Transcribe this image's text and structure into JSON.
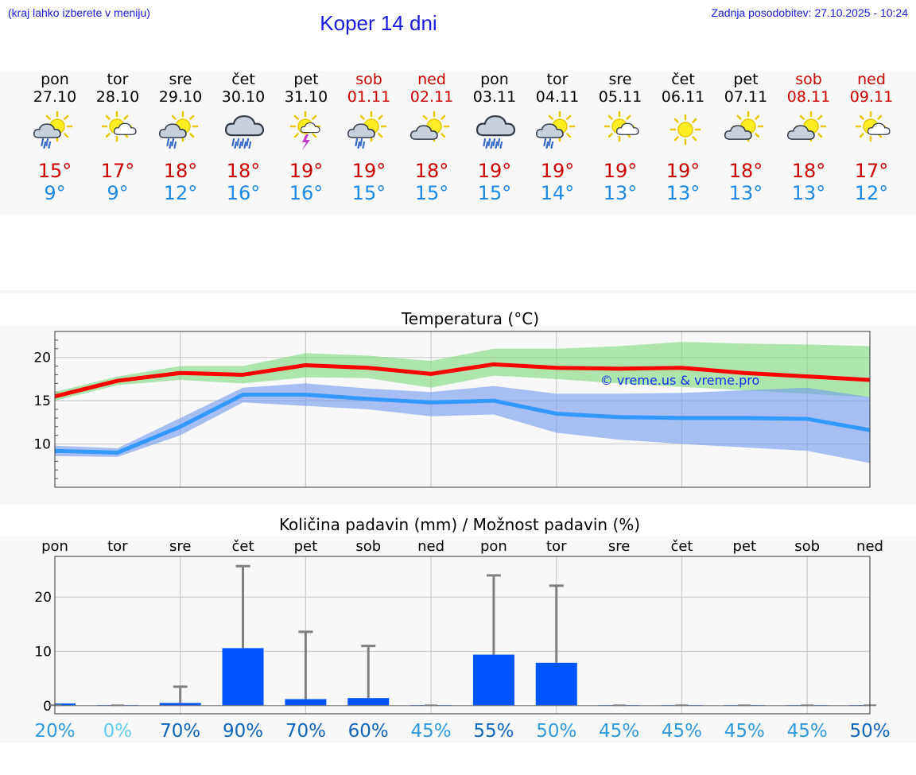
{
  "header": {
    "hint": "(kraj lahko izberete v meniju)",
    "title": "Koper 14 dni",
    "updated": "Zadnja posodobitev: 27.10.2025 - 10:24"
  },
  "days": [
    {
      "name": "pon",
      "date": "27.10",
      "weekend": false,
      "icon": "sun-cloud-rain-icon",
      "max": "15°",
      "min": "9°"
    },
    {
      "name": "tor",
      "date": "28.10",
      "weekend": false,
      "icon": "sun-small-cloud-icon",
      "max": "17°",
      "min": "9°"
    },
    {
      "name": "sre",
      "date": "29.10",
      "weekend": false,
      "icon": "sun-cloud-rain-icon",
      "max": "18°",
      "min": "12°"
    },
    {
      "name": "čet",
      "date": "30.10",
      "weekend": false,
      "icon": "cloud-heavy-rain-icon",
      "max": "18°",
      "min": "16°"
    },
    {
      "name": "pet",
      "date": "31.10",
      "weekend": false,
      "icon": "sun-thunderstorm-icon",
      "max": "19°",
      "min": "16°"
    },
    {
      "name": "sob",
      "date": "01.11",
      "weekend": true,
      "icon": "sun-cloud-rain-icon",
      "max": "19°",
      "min": "15°"
    },
    {
      "name": "ned",
      "date": "02.11",
      "weekend": true,
      "icon": "sun-cloud-icon",
      "max": "18°",
      "min": "15°"
    },
    {
      "name": "pon",
      "date": "03.11",
      "weekend": false,
      "icon": "cloud-heavy-rain-icon",
      "max": "19°",
      "min": "15°"
    },
    {
      "name": "tor",
      "date": "04.11",
      "weekend": false,
      "icon": "sun-cloud-rain-icon",
      "max": "19°",
      "min": "14°"
    },
    {
      "name": "sre",
      "date": "05.11",
      "weekend": false,
      "icon": "sun-small-cloud-icon",
      "max": "19°",
      "min": "13°"
    },
    {
      "name": "čet",
      "date": "06.11",
      "weekend": false,
      "icon": "sun-icon",
      "max": "19°",
      "min": "13°"
    },
    {
      "name": "pet",
      "date": "07.11",
      "weekend": false,
      "icon": "sun-cloud-icon",
      "max": "18°",
      "min": "13°"
    },
    {
      "name": "sob",
      "date": "08.11",
      "weekend": true,
      "icon": "sun-cloud-icon",
      "max": "18°",
      "min": "13°"
    },
    {
      "name": "ned",
      "date": "09.11",
      "weekend": true,
      "icon": "sun-small-cloud-icon",
      "max": "17°",
      "min": "12°"
    }
  ],
  "chart_data": [
    {
      "type": "line",
      "title": "Temperatura (°C)",
      "x": [
        0,
        1,
        2,
        3,
        4,
        5,
        6,
        7,
        8,
        9,
        10,
        11,
        12,
        13
      ],
      "ylim": [
        5,
        23
      ],
      "yticks": [
        10,
        15,
        20
      ],
      "grid": true,
      "watermark": "© vreme.us & vreme.pro",
      "series": [
        {
          "name": "max",
          "color": "#ff0000",
          "values": [
            15.5,
            17.3,
            18.2,
            18.0,
            19.1,
            18.8,
            18.1,
            19.2,
            18.8,
            18.7,
            18.8,
            18.2,
            17.8,
            17.4
          ]
        },
        {
          "name": "min",
          "color": "#3399ff",
          "values": [
            9.2,
            9.0,
            12.0,
            15.7,
            15.7,
            15.2,
            14.8,
            15.0,
            13.5,
            13.1,
            13.0,
            13.0,
            12.9,
            11.6
          ]
        }
      ],
      "bands": [
        {
          "name": "max-range",
          "color": "#7cd87c",
          "low": [
            15.0,
            16.8,
            17.4,
            17.0,
            17.7,
            17.6,
            16.5,
            17.9,
            17.5,
            17.0,
            16.6,
            16.2,
            15.8,
            15.4
          ],
          "high": [
            16.0,
            17.8,
            19.0,
            19.0,
            20.5,
            20.2,
            19.6,
            21.0,
            21.0,
            21.3,
            21.8,
            21.6,
            21.5,
            21.3
          ]
        },
        {
          "name": "min-range",
          "color": "#6f97ee",
          "low": [
            8.6,
            8.5,
            11.0,
            14.8,
            14.4,
            14.0,
            13.2,
            13.4,
            11.3,
            10.5,
            10.0,
            9.6,
            9.2,
            7.8
          ],
          "high": [
            9.8,
            9.5,
            13.0,
            16.5,
            17.0,
            16.4,
            16.0,
            16.7,
            15.8,
            15.8,
            15.9,
            16.2,
            16.5,
            15.4
          ]
        }
      ]
    },
    {
      "type": "bar",
      "title": "Količina padavin (mm) / Možnost padavin (%)",
      "categories": [
        "pon",
        "tor",
        "sre",
        "čet",
        "pet",
        "sob",
        "ned",
        "pon",
        "tor",
        "sre",
        "čet",
        "pet",
        "sob",
        "ned"
      ],
      "ylim": [
        -1.5,
        27.5
      ],
      "yticks": [
        0,
        10,
        20
      ],
      "grid": true,
      "bar_color": "#0055ff",
      "values": [
        0.4,
        0.1,
        0.5,
        10.6,
        1.2,
        1.4,
        0.1,
        9.4,
        7.9,
        0.1,
        0.1,
        0.1,
        0.1,
        0.1
      ],
      "error_high": [
        0.4,
        0.1,
        3.5,
        25.7,
        13.6,
        11.0,
        0.1,
        24.0,
        22.1,
        0.1,
        0.1,
        0.1,
        0.1,
        0.1
      ],
      "probability": [
        "20%",
        "0%",
        "70%",
        "90%",
        "70%",
        "60%",
        "45%",
        "55%",
        "50%",
        "45%",
        "45%",
        "45%",
        "45%",
        "50%"
      ],
      "probability_colors": [
        "#3399dd",
        "#66ccee",
        "#1166bb",
        "#1166bb",
        "#1166bb",
        "#1166bb",
        "#3399dd",
        "#1166bb",
        "#3399dd",
        "#3399dd",
        "#3399dd",
        "#3399dd",
        "#3399dd",
        "#1166bb"
      ]
    }
  ]
}
